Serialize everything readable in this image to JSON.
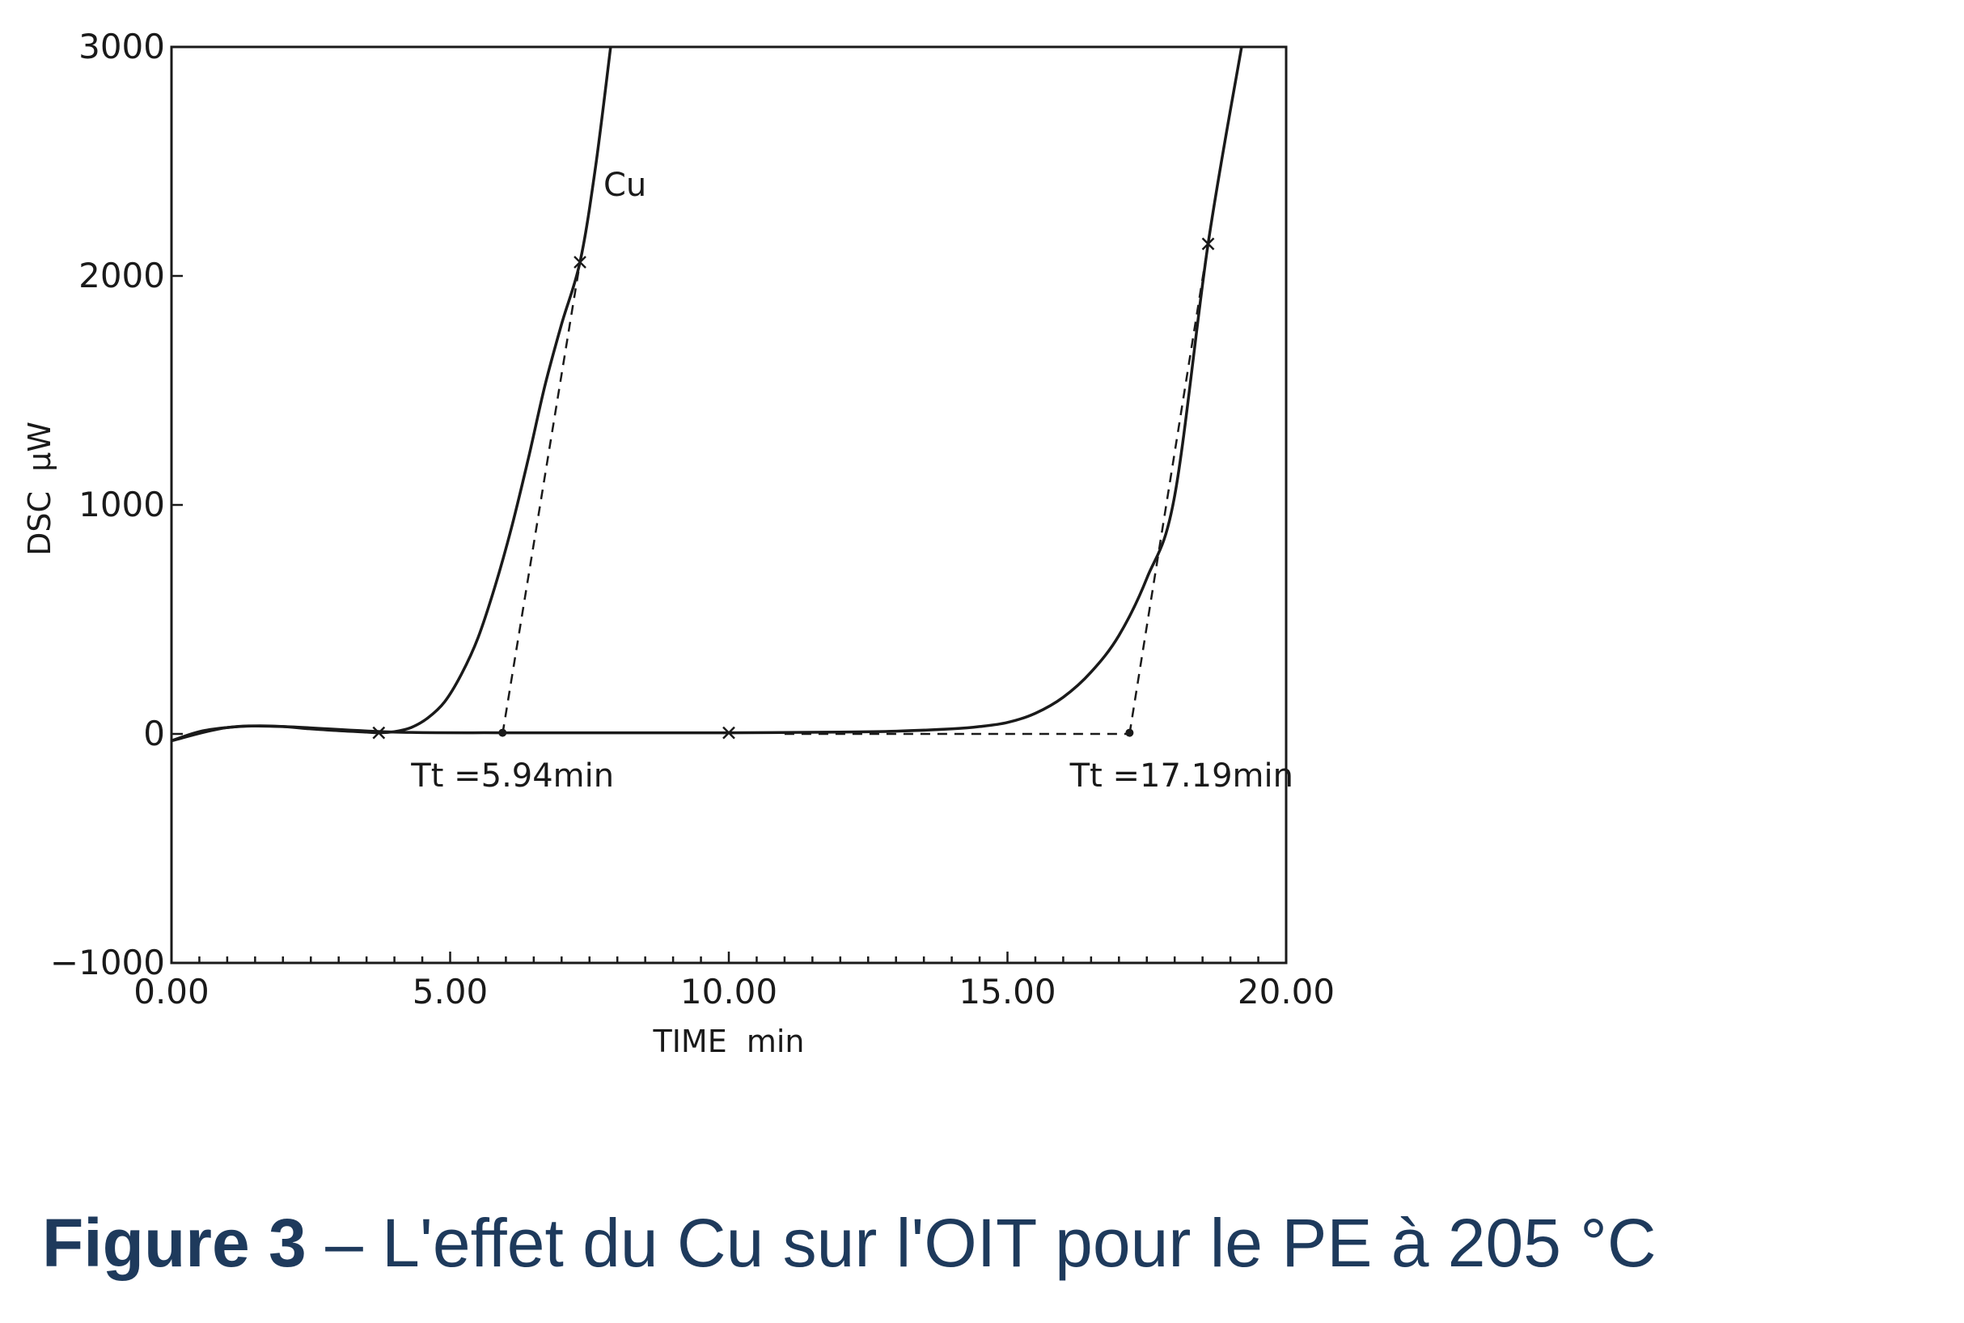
{
  "chart_data": {
    "type": "line",
    "title": "",
    "xlabel": "TIME  min",
    "ylabel": "DSC  μW",
    "xlim": [
      0,
      20
    ],
    "ylim": [
      -1000,
      3000
    ],
    "x_ticks": [
      0,
      5,
      10,
      15,
      20
    ],
    "x_tick_labels": [
      "0.00",
      "5.00",
      "10.00",
      "15.00",
      "20.00"
    ],
    "y_ticks": [
      -1000,
      0,
      1000,
      2000,
      3000
    ],
    "y_tick_labels": [
      "−1000",
      "0",
      "1000",
      "2000",
      "3000"
    ],
    "grid": false,
    "line_color": "#1a1a1a",
    "series": [
      {
        "name": "Cu",
        "x": [
          0.0,
          0.5,
          1.0,
          1.5,
          2.0,
          2.5,
          3.0,
          3.5,
          3.72,
          4.0,
          4.3,
          4.6,
          4.9,
          5.2,
          5.5,
          5.8,
          6.1,
          6.4,
          6.7,
          7.0,
          7.33,
          7.6,
          7.88
        ],
        "y": [
          -30,
          10,
          28,
          35,
          32,
          22,
          14,
          8,
          5,
          10,
          28,
          70,
          140,
          260,
          420,
          640,
          900,
          1200,
          1520,
          1790,
          2060,
          2460,
          3000
        ]
      },
      {
        "name": "",
        "x": [
          0.0,
          1.0,
          2.0,
          4.0,
          6.0,
          8.0,
          10.0,
          12.0,
          13.0,
          14.0,
          14.5,
          15.0,
          15.5,
          16.0,
          16.5,
          17.0,
          17.5,
          18.0,
          18.6,
          19.2
        ],
        "y": [
          -30,
          28,
          32,
          8,
          5,
          5,
          5,
          8,
          12,
          22,
          32,
          50,
          90,
          160,
          270,
          430,
          680,
          1040,
          2140,
          3000
        ]
      }
    ],
    "markers": [
      {
        "x": 3.72,
        "y": 5
      },
      {
        "x": 7.33,
        "y": 2060
      },
      {
        "x": 10.0,
        "y": 5
      },
      {
        "x": 18.6,
        "y": 2140
      }
    ],
    "onset_markers": [
      {
        "x": 5.94,
        "y": 5
      },
      {
        "x": 17.19,
        "y": 5
      }
    ],
    "tangents": [
      {
        "x": [
          5.94,
          7.33
        ],
        "y": [
          0,
          2060
        ]
      },
      {
        "x": [
          17.19,
          18.6
        ],
        "y": [
          0,
          2140
        ]
      }
    ],
    "baselines": [
      {
        "x": [
          11.0,
          17.19
        ],
        "y": [
          0,
          0
        ]
      }
    ],
    "annotations": [
      {
        "text": "Cu",
        "x": 7.75,
        "y": 2400
      },
      {
        "text": "Tt =5.94min",
        "x": 4.3,
        "y": -180
      },
      {
        "text": "Tt =17.19min",
        "x": 16.12,
        "y": -180
      }
    ]
  },
  "caption": {
    "lead": "Figure 3",
    "text": " – L'effet du Cu sur l'OIT pour le PE à 205 °C",
    "color": "#1e3a5c"
  }
}
